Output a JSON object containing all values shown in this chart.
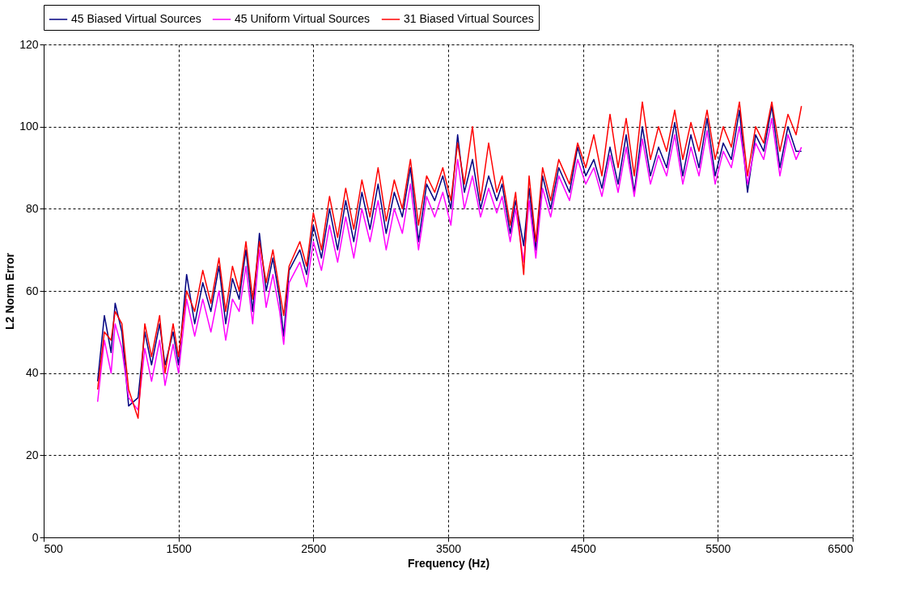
{
  "chart_data": {
    "type": "line",
    "xlabel": "Frequency (Hz)",
    "ylabel": "L2 Norm Error",
    "xlim": [
      500,
      6500
    ],
    "xticks": [
      500,
      1500,
      2500,
      3500,
      4500,
      5500,
      6500
    ],
    "ylim": [
      0,
      120
    ],
    "yticks": [
      0,
      20,
      40,
      60,
      80,
      100,
      120
    ],
    "grid": true,
    "legend": "top",
    "marker": "none",
    "line_style": "solid",
    "x": [
      900,
      950,
      1000,
      1030,
      1080,
      1130,
      1200,
      1250,
      1300,
      1360,
      1400,
      1460,
      1500,
      1560,
      1620,
      1680,
      1740,
      1800,
      1850,
      1900,
      1950,
      2000,
      2050,
      2100,
      2150,
      2200,
      2250,
      2280,
      2320,
      2400,
      2450,
      2500,
      2560,
      2620,
      2680,
      2740,
      2800,
      2860,
      2920,
      2980,
      3040,
      3100,
      3160,
      3220,
      3280,
      3340,
      3400,
      3460,
      3520,
      3570,
      3620,
      3680,
      3740,
      3800,
      3860,
      3900,
      3960,
      4000,
      4060,
      4100,
      4150,
      4200,
      4260,
      4320,
      4400,
      4460,
      4520,
      4580,
      4640,
      4700,
      4760,
      4820,
      4880,
      4940,
      5000,
      5060,
      5120,
      5180,
      5240,
      5300,
      5360,
      5420,
      5480,
      5540,
      5600,
      5660,
      5720,
      5780,
      5840,
      5900,
      5960,
      6020,
      6080,
      6120
    ],
    "series": [
      {
        "name": "45 Biased Virtual Sources",
        "color": "#000080",
        "values": [
          38,
          54,
          45,
          57,
          50,
          32,
          34,
          50,
          42,
          52,
          42,
          50,
          42,
          64,
          52,
          62,
          55,
          66,
          52,
          63,
          58,
          70,
          55,
          74,
          60,
          68,
          58,
          49,
          65,
          70,
          64,
          76,
          68,
          80,
          70,
          82,
          72,
          84,
          75,
          86,
          74,
          84,
          78,
          90,
          72,
          86,
          82,
          88,
          80,
          98,
          84,
          92,
          80,
          88,
          82,
          86,
          74,
          82,
          71,
          85,
          70,
          88,
          80,
          90,
          84,
          95,
          88,
          92,
          85,
          95,
          86,
          98,
          84,
          100,
          88,
          95,
          90,
          101,
          88,
          98,
          90,
          102,
          88,
          96,
          92,
          104,
          84,
          98,
          94,
          105,
          90,
          100,
          94,
          94
        ]
      },
      {
        "name": "45 Uniform Virtual Sources",
        "color": "#ff00ff",
        "values": [
          33,
          48,
          40,
          52,
          46,
          34,
          31,
          46,
          38,
          48,
          37,
          47,
          40,
          58,
          49,
          58,
          50,
          60,
          48,
          58,
          55,
          66,
          52,
          70,
          56,
          64,
          55,
          47,
          62,
          67,
          61,
          72,
          65,
          76,
          67,
          78,
          68,
          80,
          72,
          82,
          70,
          80,
          74,
          86,
          70,
          83,
          78,
          84,
          76,
          92,
          80,
          88,
          78,
          85,
          79,
          83,
          72,
          80,
          67,
          82,
          68,
          85,
          78,
          88,
          82,
          92,
          86,
          90,
          83,
          93,
          84,
          95,
          83,
          97,
          86,
          93,
          88,
          98,
          86,
          95,
          88,
          99,
          86,
          94,
          90,
          100,
          86,
          96,
          92,
          102,
          88,
          98,
          92,
          95
        ]
      },
      {
        "name": "31 Biased Virtual Sources",
        "color": "#ff0000",
        "values": [
          36,
          50,
          48,
          55,
          52,
          36,
          29,
          52,
          44,
          54,
          40,
          52,
          44,
          60,
          55,
          65,
          57,
          68,
          55,
          66,
          60,
          72,
          58,
          72,
          62,
          70,
          60,
          54,
          66,
          72,
          66,
          79,
          70,
          83,
          73,
          85,
          75,
          87,
          78,
          90,
          77,
          87,
          80,
          92,
          76,
          88,
          84,
          90,
          82,
          96,
          86,
          100,
          82,
          96,
          84,
          88,
          76,
          84,
          64,
          88,
          72,
          90,
          82,
          92,
          86,
          96,
          90,
          98,
          88,
          103,
          90,
          102,
          88,
          106,
          92,
          100,
          94,
          104,
          92,
          101,
          94,
          104,
          92,
          100,
          95,
          106,
          88,
          100,
          96,
          106,
          94,
          103,
          98,
          105
        ]
      }
    ]
  }
}
